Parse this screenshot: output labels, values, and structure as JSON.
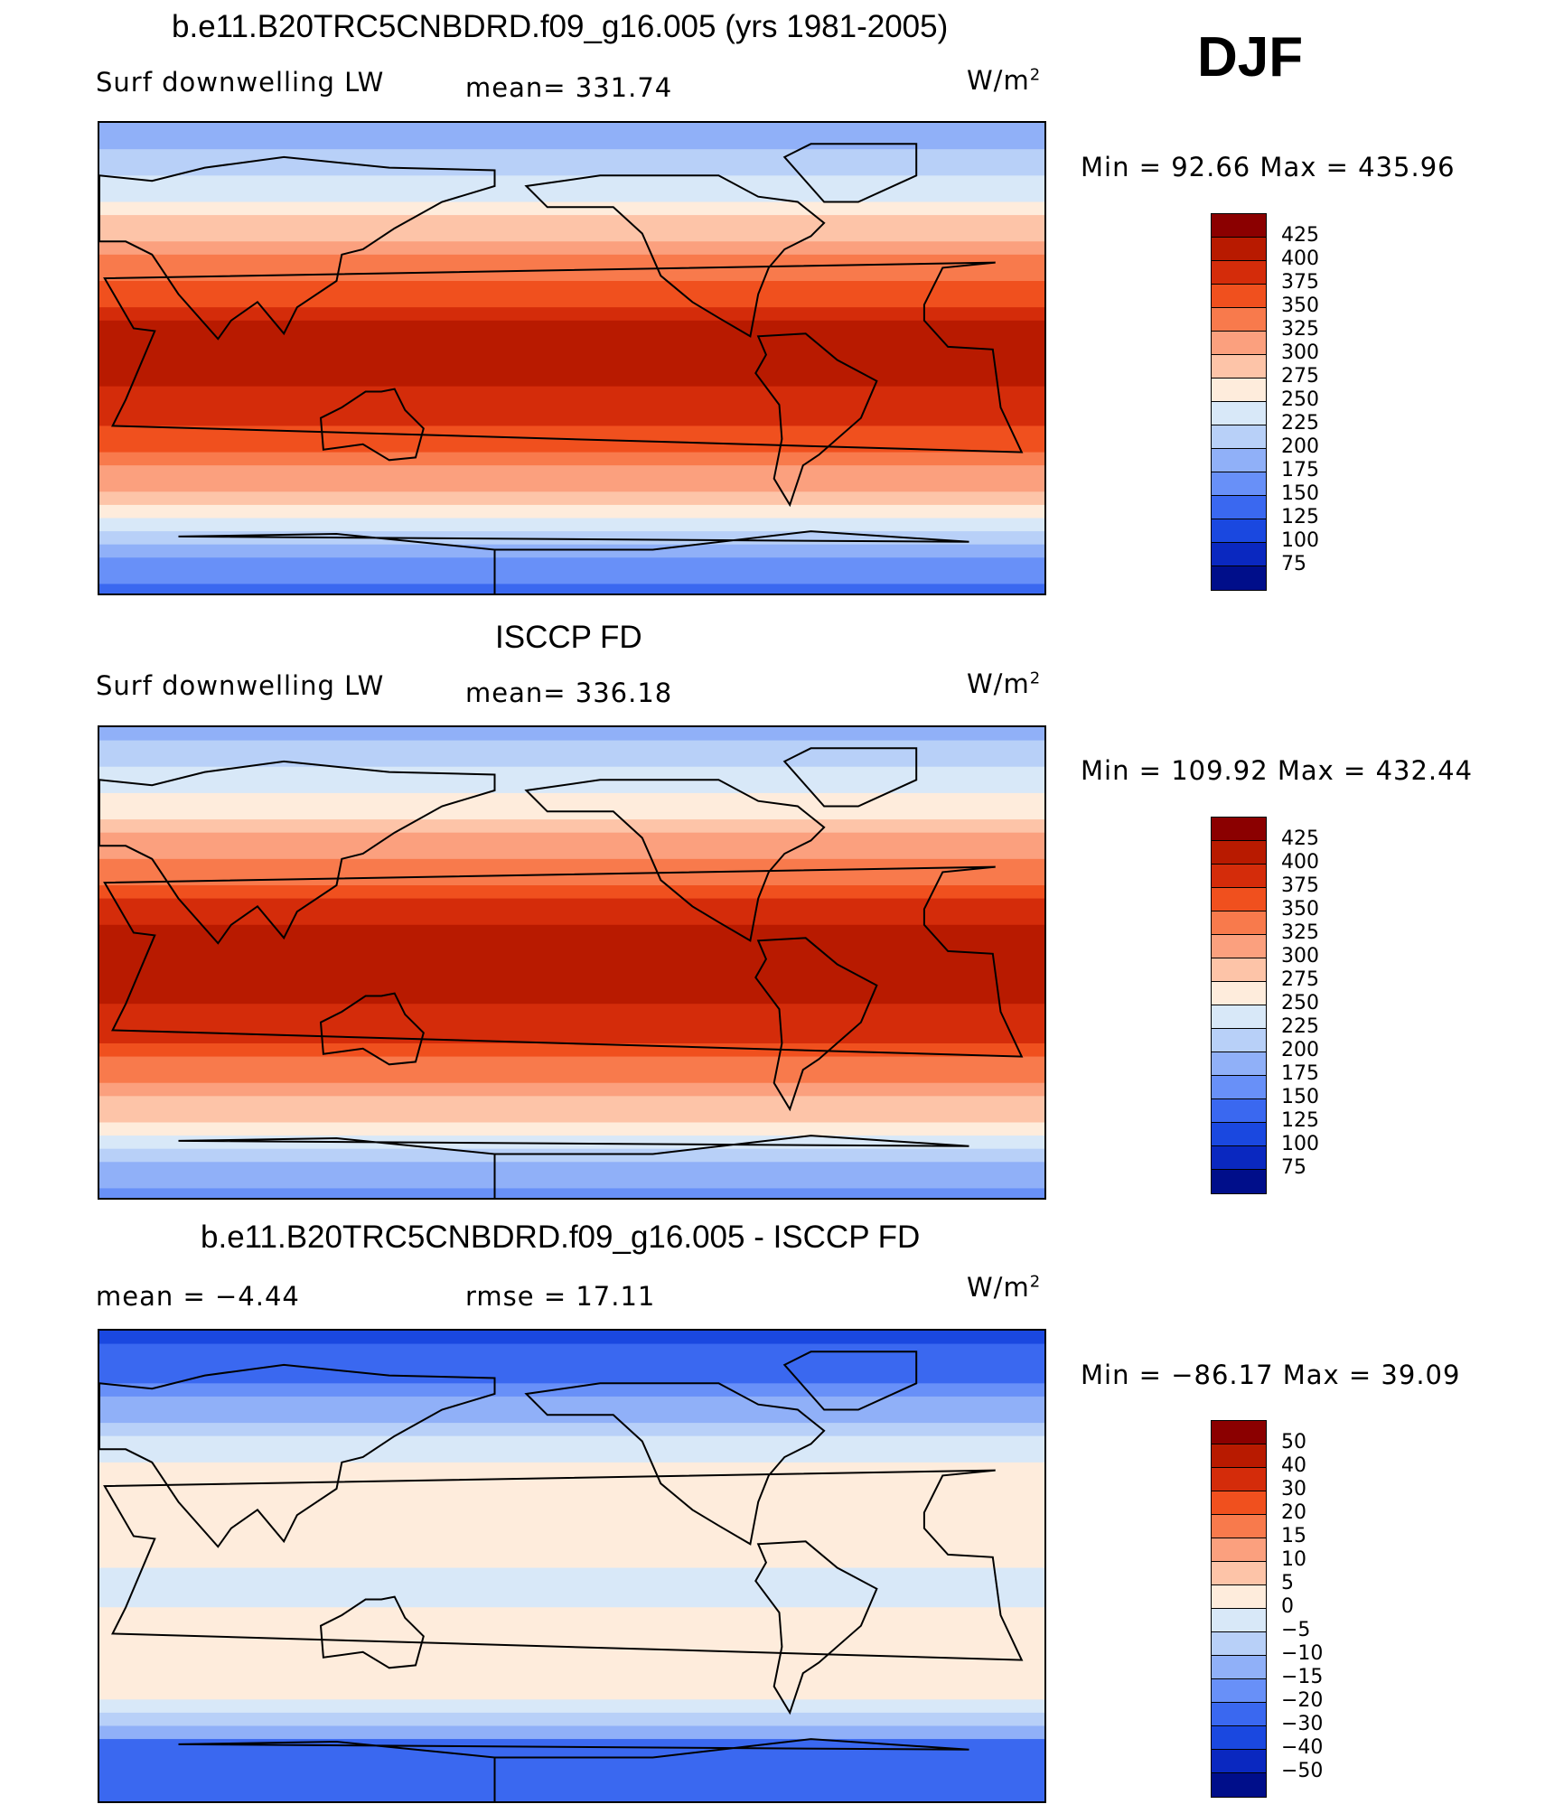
{
  "season": "DJF",
  "panels": [
    {
      "title": "b.e11.B20TRC5CNBDRD.f09_g16.005 (yrs 1981-2005)",
      "left_label": "Surf downwelling LW",
      "center_label": "mean= 331.74",
      "unit": "W/m",
      "unit_sup": "2",
      "minmax": "Min =  92.66 Max = 435.96",
      "colorbar_labels": [
        "425",
        "400",
        "375",
        "350",
        "325",
        "300",
        "275",
        "250",
        "225",
        "200",
        "175",
        "150",
        "125",
        "100",
        "75"
      ]
    },
    {
      "title": "ISCCP FD",
      "left_label": "Surf downwelling LW",
      "center_label": "mean= 336.18",
      "unit": "W/m",
      "unit_sup": "2",
      "minmax": "Min = 109.92 Max = 432.44",
      "colorbar_labels": [
        "425",
        "400",
        "375",
        "350",
        "325",
        "300",
        "275",
        "250",
        "225",
        "200",
        "175",
        "150",
        "125",
        "100",
        "75"
      ]
    },
    {
      "title": "b.e11.B20TRC5CNBDRD.f09_g16.005 - ISCCP FD",
      "left_label": "mean =   −4.44",
      "center_label": "rmse =   17.11",
      "unit": "W/m",
      "unit_sup": "2",
      "minmax": "Min = −86.17 Max =   39.09",
      "colorbar_labels": [
        "50",
        "40",
        "30",
        "20",
        "15",
        "10",
        "5",
        "0",
        "−5",
        "−10",
        "−15",
        "−20",
        "−30",
        "−40",
        "−50"
      ]
    }
  ],
  "colorbar_colors": [
    "#8b0000",
    "#b81a00",
    "#d42c0a",
    "#f0501e",
    "#f87a4c",
    "#fba07e",
    "#fdc4a8",
    "#feecdc",
    "#d8e8f8",
    "#b8d0f8",
    "#90b0f8",
    "#6890f8",
    "#3a68f0",
    "#1a48e0",
    "#0a28c0",
    "#000e8a"
  ],
  "chart_data": [
    {
      "type": "heatmap",
      "title": "b.e11.B20TRC5CNBDRD.f09_g16.005 (yrs 1981-2005)",
      "variable": "Surf downwelling LW",
      "units": "W/m2",
      "mean": 331.74,
      "min": 92.66,
      "max": 435.96,
      "levels": [
        75,
        100,
        125,
        150,
        175,
        200,
        225,
        250,
        275,
        300,
        325,
        350,
        375,
        400,
        425
      ],
      "zonal_profile_lat": [
        90,
        70,
        50,
        30,
        10,
        -10,
        -30,
        -50,
        -70,
        -90
      ],
      "zonal_profile_value": [
        170,
        220,
        290,
        350,
        410,
        405,
        360,
        300,
        190,
        130
      ]
    },
    {
      "type": "heatmap",
      "title": "ISCCP FD",
      "variable": "Surf downwelling LW",
      "units": "W/m2",
      "mean": 336.18,
      "min": 109.92,
      "max": 432.44,
      "levels": [
        75,
        100,
        125,
        150,
        175,
        200,
        225,
        250,
        275,
        300,
        325,
        350,
        375,
        400,
        425
      ],
      "zonal_profile_lat": [
        90,
        70,
        50,
        30,
        10,
        -10,
        -30,
        -50,
        -70,
        -90
      ],
      "zonal_profile_value": [
        190,
        230,
        295,
        355,
        410,
        410,
        370,
        310,
        220,
        150
      ]
    },
    {
      "type": "heatmap",
      "title": "b.e11.B20TRC5CNBDRD.f09_g16.005 - ISCCP FD",
      "variable": "difference",
      "units": "W/m2",
      "mean": -4.44,
      "rmse": 17.11,
      "min": -86.17,
      "max": 39.09,
      "levels": [
        -50,
        -40,
        -30,
        -20,
        -15,
        -10,
        -5,
        0,
        5,
        10,
        15,
        20,
        30,
        40,
        50
      ],
      "zonal_profile_lat": [
        90,
        70,
        50,
        30,
        10,
        -10,
        -30,
        -50,
        -70,
        -90
      ],
      "zonal_profile_value": [
        -35,
        -20,
        -5,
        5,
        3,
        -2,
        4,
        2,
        -25,
        -30
      ]
    }
  ]
}
